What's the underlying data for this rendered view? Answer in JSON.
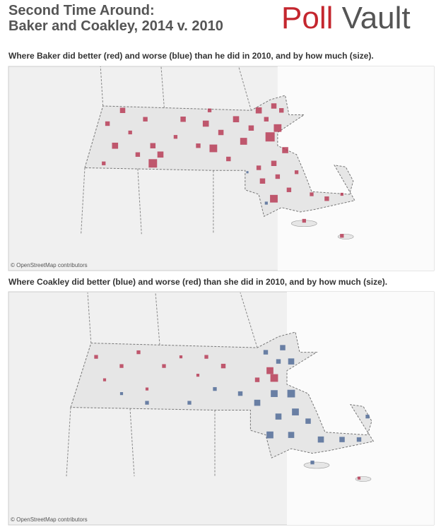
{
  "header": {
    "title_line1": "Second Time Around:",
    "title_line2": "Baker and Coakley, 2014 v. 2010",
    "logo_part1": "Poll",
    "logo_part2": "Vault"
  },
  "maps": [
    {
      "subtitle": "Where Baker did better (red) and worse (blue) than he did in 2010, and by how much (size).",
      "attribution": "© OpenStreetMap contributors",
      "better_color": "#b5334f",
      "worse_color": "#4a6594",
      "points": [
        [
          -73.2,
          42.55,
          4
        ],
        [
          -73.1,
          42.3,
          6
        ],
        [
          -73.25,
          42.1,
          3
        ],
        [
          -73.0,
          42.7,
          5
        ],
        [
          -72.9,
          42.45,
          3
        ],
        [
          -72.7,
          42.6,
          4
        ],
        [
          -72.6,
          42.3,
          5
        ],
        [
          -72.6,
          42.1,
          9
        ],
        [
          -72.5,
          42.2,
          6
        ],
        [
          -72.3,
          42.4,
          3
        ],
        [
          -72.2,
          42.6,
          5
        ],
        [
          -72.0,
          42.3,
          4
        ],
        [
          -71.9,
          42.55,
          6
        ],
        [
          -71.8,
          42.27,
          8
        ],
        [
          -71.7,
          42.45,
          5
        ],
        [
          -71.6,
          42.15,
          4
        ],
        [
          -71.5,
          42.6,
          6
        ],
        [
          -71.4,
          42.35,
          7
        ],
        [
          -71.3,
          42.5,
          5
        ],
        [
          -71.2,
          42.7,
          6
        ],
        [
          -71.1,
          42.6,
          4
        ],
        [
          -71.05,
          42.4,
          10
        ],
        [
          -70.95,
          42.5,
          8
        ],
        [
          -70.9,
          42.7,
          4
        ],
        [
          -70.85,
          42.25,
          6
        ],
        [
          -71.0,
          42.1,
          5
        ],
        [
          -71.2,
          42.05,
          4
        ],
        [
          -71.15,
          41.9,
          5
        ],
        [
          -70.95,
          41.95,
          4
        ],
        [
          -71.0,
          41.7,
          8
        ],
        [
          -70.8,
          41.8,
          4
        ],
        [
          -70.7,
          42.0,
          3
        ],
        [
          -70.5,
          41.75,
          3
        ],
        [
          -70.3,
          41.7,
          4
        ],
        [
          -70.1,
          41.75,
          2
        ],
        [
          -70.6,
          41.45,
          3
        ],
        [
          -70.1,
          41.28,
          3
        ],
        [
          -71.1,
          41.65,
          -2
        ],
        [
          -71.35,
          42.0,
          -1
        ],
        [
          -71.0,
          42.75,
          5
        ],
        [
          -72.8,
          42.2,
          4
        ],
        [
          -71.85,
          42.7,
          3
        ]
      ]
    },
    {
      "subtitle": "Where Coakley did better (blue) and worse (red) than she did in 2010, and by how much (size).",
      "attribution": "© OpenStreetMap contributors",
      "better_color": "#4a6594",
      "worse_color": "#b5334f",
      "points": [
        [
          -73.2,
          42.6,
          -3
        ],
        [
          -73.1,
          42.35,
          -2
        ],
        [
          -72.9,
          42.5,
          -3
        ],
        [
          -72.7,
          42.65,
          -3
        ],
        [
          -72.6,
          42.25,
          -2
        ],
        [
          -72.4,
          42.5,
          -3
        ],
        [
          -72.2,
          42.6,
          -2
        ],
        [
          -72.0,
          42.4,
          -2
        ],
        [
          -71.9,
          42.6,
          -3
        ],
        [
          -71.7,
          42.5,
          -4
        ],
        [
          -71.3,
          42.35,
          -4
        ],
        [
          -71.1,
          42.37,
          -8
        ],
        [
          -71.15,
          42.45,
          -7
        ],
        [
          -71.0,
          42.7,
          5
        ],
        [
          -70.9,
          42.55,
          6
        ],
        [
          -71.05,
          42.55,
          4
        ],
        [
          -71.2,
          42.65,
          4
        ],
        [
          -71.5,
          42.2,
          4
        ],
        [
          -71.8,
          42.25,
          3
        ],
        [
          -72.1,
          42.1,
          3
        ],
        [
          -72.6,
          42.1,
          3
        ],
        [
          -71.3,
          42.1,
          6
        ],
        [
          -71.1,
          42.2,
          7
        ],
        [
          -70.9,
          42.2,
          8
        ],
        [
          -70.85,
          42.0,
          7
        ],
        [
          -71.05,
          41.95,
          6
        ],
        [
          -71.15,
          41.75,
          7
        ],
        [
          -70.9,
          41.75,
          6
        ],
        [
          -70.7,
          41.9,
          5
        ],
        [
          -70.55,
          41.7,
          6
        ],
        [
          -70.3,
          41.7,
          5
        ],
        [
          -70.1,
          41.7,
          4
        ],
        [
          -70.0,
          41.95,
          3
        ],
        [
          -70.65,
          41.45,
          3
        ],
        [
          -70.1,
          41.28,
          -2
        ],
        [
          -72.9,
          42.2,
          2
        ]
      ]
    }
  ]
}
